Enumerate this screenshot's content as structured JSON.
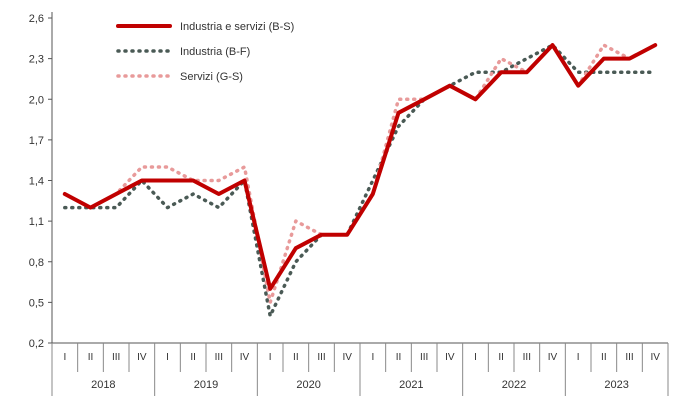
{
  "chart_data": {
    "type": "line",
    "title": "",
    "xlabel": "",
    "ylabel": "",
    "ylim": [
      0.2,
      2.6
    ],
    "yticks": [
      "2,6",
      "2,3",
      "2,0",
      "1,7",
      "1,4",
      "1,1",
      "0,8",
      "0,5",
      "0,2"
    ],
    "quarters": [
      "I",
      "II",
      "III",
      "IV",
      "I",
      "II",
      "III",
      "IV",
      "I",
      "II",
      "III",
      "IV",
      "I",
      "II",
      "III",
      "IV",
      "I",
      "II",
      "III",
      "IV",
      "I",
      "II",
      "III",
      "IV"
    ],
    "years": [
      "2018",
      "2019",
      "2020",
      "2021",
      "2022",
      "2023"
    ],
    "legend_position": "top-left",
    "series": [
      {
        "name": "Industria e servizi (B-S)",
        "style": "solid",
        "color": "#c00000",
        "values": [
          1.3,
          1.2,
          1.3,
          1.4,
          1.4,
          1.4,
          1.3,
          1.4,
          0.6,
          0.9,
          1.0,
          1.0,
          1.3,
          1.9,
          2.0,
          2.1,
          2.0,
          2.2,
          2.2,
          2.4,
          2.1,
          2.3,
          2.3,
          2.4
        ]
      },
      {
        "name": "Industria (B-F)",
        "style": "dotted",
        "color": "#4a5a55",
        "values": [
          1.2,
          1.2,
          1.2,
          1.4,
          1.2,
          1.3,
          1.2,
          1.4,
          0.4,
          0.8,
          1.0,
          1.0,
          1.4,
          1.8,
          2.0,
          2.1,
          2.2,
          2.2,
          2.3,
          2.4,
          2.2,
          2.2,
          2.2,
          2.2
        ]
      },
      {
        "name": "Servizi (G-S)",
        "style": "dotted",
        "color": "#e89a9a",
        "values": [
          1.3,
          1.2,
          1.3,
          1.5,
          1.5,
          1.4,
          1.4,
          1.5,
          0.5,
          1.1,
          1.0,
          1.0,
          1.3,
          2.0,
          2.0,
          2.1,
          2.0,
          2.3,
          2.2,
          2.4,
          2.1,
          2.4,
          2.3,
          2.4
        ]
      }
    ]
  }
}
